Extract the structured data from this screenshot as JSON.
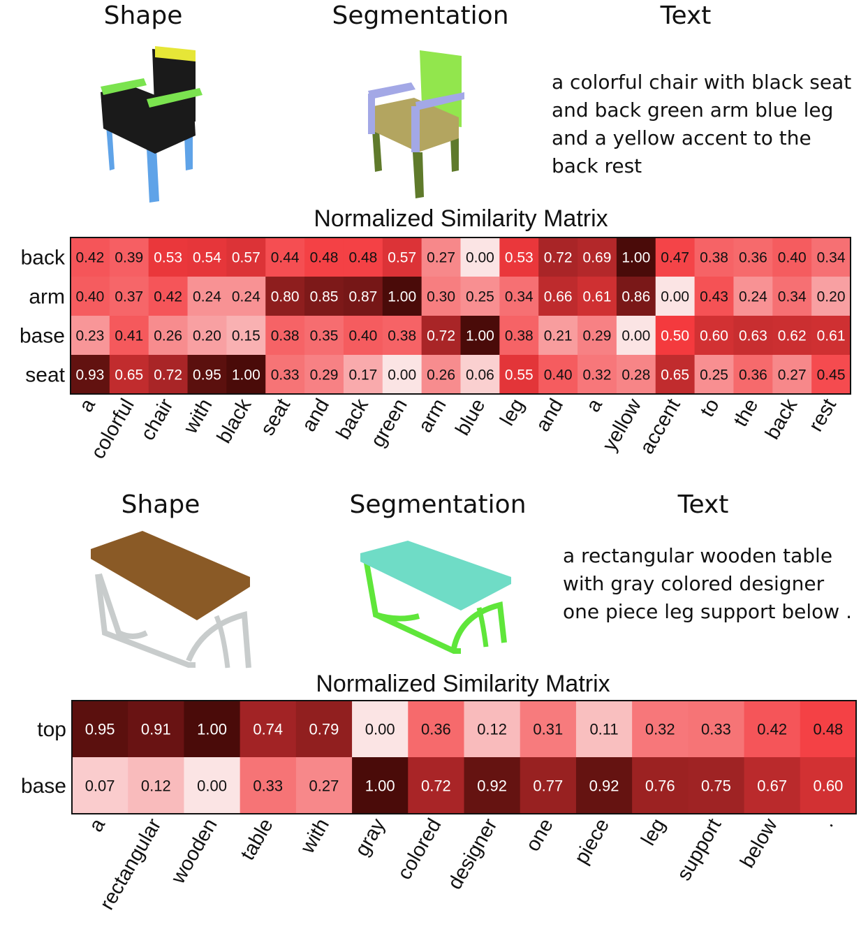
{
  "examples": [
    {
      "headers": {
        "shape": "Shape",
        "segmentation": "Segmentation",
        "text": "Text"
      },
      "caption_lines": [
        "a colorful chair with black seat",
        "and back green arm blue leg",
        "and a yellow accent to the",
        "back rest"
      ],
      "matrix_title": "Normalized Similarity Matrix"
    },
    {
      "headers": {
        "shape": "Shape",
        "segmentation": "Segmentation",
        "text": "Text"
      },
      "caption_lines": [
        "a rectangular wooden table",
        "with gray colored designer",
        "one piece leg support below ."
      ],
      "matrix_title": "Normalized Similarity Matrix"
    }
  ],
  "colors": {
    "scale_low": "#fbe4e4",
    "scale_mid": "#f43a3e",
    "scale_high": "#4a0b09",
    "chair_black": "#1a1a1a",
    "chair_green": "#7be34f",
    "chair_yellow": "#e6e637",
    "chair_blue": "#5fa3e8",
    "seg_green": "#92e64d",
    "seg_purple": "#a3a8e6",
    "seg_olive": "#b3a560",
    "seg_darkgreen": "#5f7a2b",
    "table_wood": "#8a5a26",
    "table_gray": "#c8cccc",
    "seg_cyan": "#6fdcc6",
    "seg_lime": "#5fe63a"
  },
  "chart_data": [
    {
      "type": "heatmap",
      "title": "Normalized Similarity Matrix",
      "rows": [
        "back",
        "arm",
        "base",
        "seat"
      ],
      "columns": [
        "a",
        "colorful",
        "chair",
        "with",
        "black",
        "seat",
        "and",
        "back",
        "green",
        "arm",
        "blue",
        "leg",
        "and",
        "a",
        "yellow",
        "accent",
        "to",
        "the",
        "back",
        "rest"
      ],
      "values": [
        [
          0.42,
          0.39,
          0.53,
          0.54,
          0.57,
          0.44,
          0.48,
          0.48,
          0.57,
          0.27,
          0.0,
          0.53,
          0.72,
          0.69,
          1.0,
          0.47,
          0.38,
          0.36,
          0.4,
          0.34
        ],
        [
          0.4,
          0.37,
          0.42,
          0.24,
          0.24,
          0.8,
          0.85,
          0.87,
          1.0,
          0.3,
          0.25,
          0.34,
          0.66,
          0.61,
          0.86,
          0.0,
          0.43,
          0.24,
          0.34,
          0.2
        ],
        [
          0.23,
          0.41,
          0.26,
          0.2,
          0.15,
          0.38,
          0.35,
          0.4,
          0.38,
          0.72,
          1.0,
          0.38,
          0.21,
          0.29,
          0.0,
          0.5,
          0.6,
          0.63,
          0.62,
          0.61
        ],
        [
          0.93,
          0.65,
          0.72,
          0.95,
          1.0,
          0.33,
          0.29,
          0.17,
          0.0,
          0.26,
          0.06,
          0.55,
          0.4,
          0.32,
          0.28,
          0.65,
          0.25,
          0.36,
          0.27,
          0.45
        ]
      ]
    },
    {
      "type": "heatmap",
      "title": "Normalized Similarity Matrix",
      "rows": [
        "top",
        "base"
      ],
      "columns": [
        "a",
        "rectangular",
        "wooden",
        "table",
        "with",
        "gray",
        "colored",
        "designer",
        "one",
        "piece",
        "leg",
        "support",
        "below",
        "."
      ],
      "values": [
        [
          0.95,
          0.91,
          1.0,
          0.74,
          0.79,
          0.0,
          0.36,
          0.12,
          0.31,
          0.11,
          0.32,
          0.33,
          0.42,
          0.48
        ],
        [
          0.07,
          0.12,
          0.0,
          0.33,
          0.27,
          1.0,
          0.72,
          0.92,
          0.77,
          0.92,
          0.76,
          0.75,
          0.67,
          0.6
        ]
      ]
    }
  ]
}
